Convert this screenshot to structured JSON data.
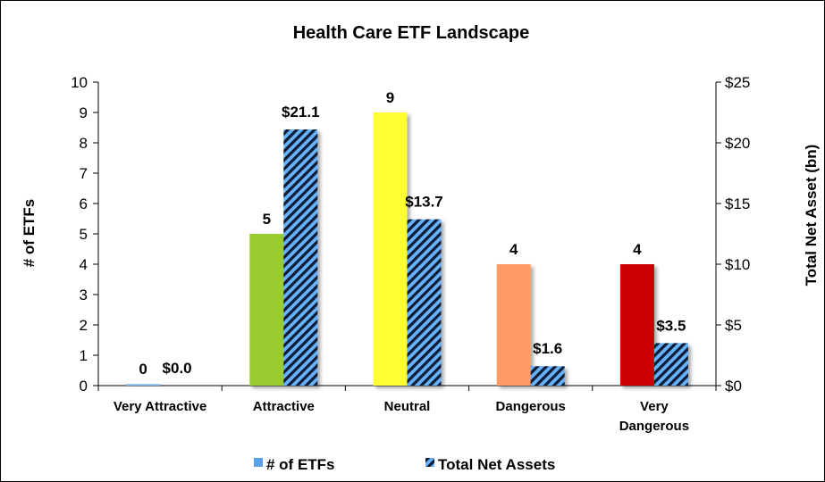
{
  "chart_data": {
    "type": "bar",
    "title": "Health Care ETF Landscape",
    "categories": [
      "Very Attractive",
      "Attractive",
      "Neutral",
      "Dangerous",
      "Very Dangerous"
    ],
    "category_label_lines": [
      [
        "Very Attractive"
      ],
      [
        "Attractive"
      ],
      [
        "Neutral"
      ],
      [
        "Dangerous"
      ],
      [
        "Very",
        "Dangerous"
      ]
    ],
    "ylabel": "# of ETFs",
    "y2label": "Total Net Asset (bn)",
    "ylim": [
      0,
      10
    ],
    "y2lim": [
      0,
      25
    ],
    "yticks": [
      "0",
      "1",
      "2",
      "3",
      "4",
      "5",
      "6",
      "7",
      "8",
      "9",
      "10"
    ],
    "y2ticks": [
      "$0",
      "$5",
      "$10",
      "$15",
      "$20",
      "$25"
    ],
    "legend_position": "bottom",
    "grid": false,
    "series": [
      {
        "name": "# of ETFs",
        "axis": "left",
        "values": [
          0,
          5,
          9,
          4,
          4
        ],
        "labels": [
          "0",
          "5",
          "9",
          "4",
          "4"
        ],
        "colors": [
          "#92c5f0",
          "#99cc33",
          "#ffff33",
          "#ff9966",
          "#cc0000"
        ],
        "legend_color": "#5aa0e6"
      },
      {
        "name": "Total Net Assets",
        "axis": "right",
        "values": [
          0.0,
          21.1,
          13.7,
          1.6,
          3.5
        ],
        "labels": [
          "$0.0",
          "$21.1",
          "$13.7",
          "$1.6",
          "$3.5"
        ],
        "pattern": "diagonal-stripes",
        "colors": [
          "#66b2ff",
          "#0b1a33"
        ]
      }
    ]
  }
}
